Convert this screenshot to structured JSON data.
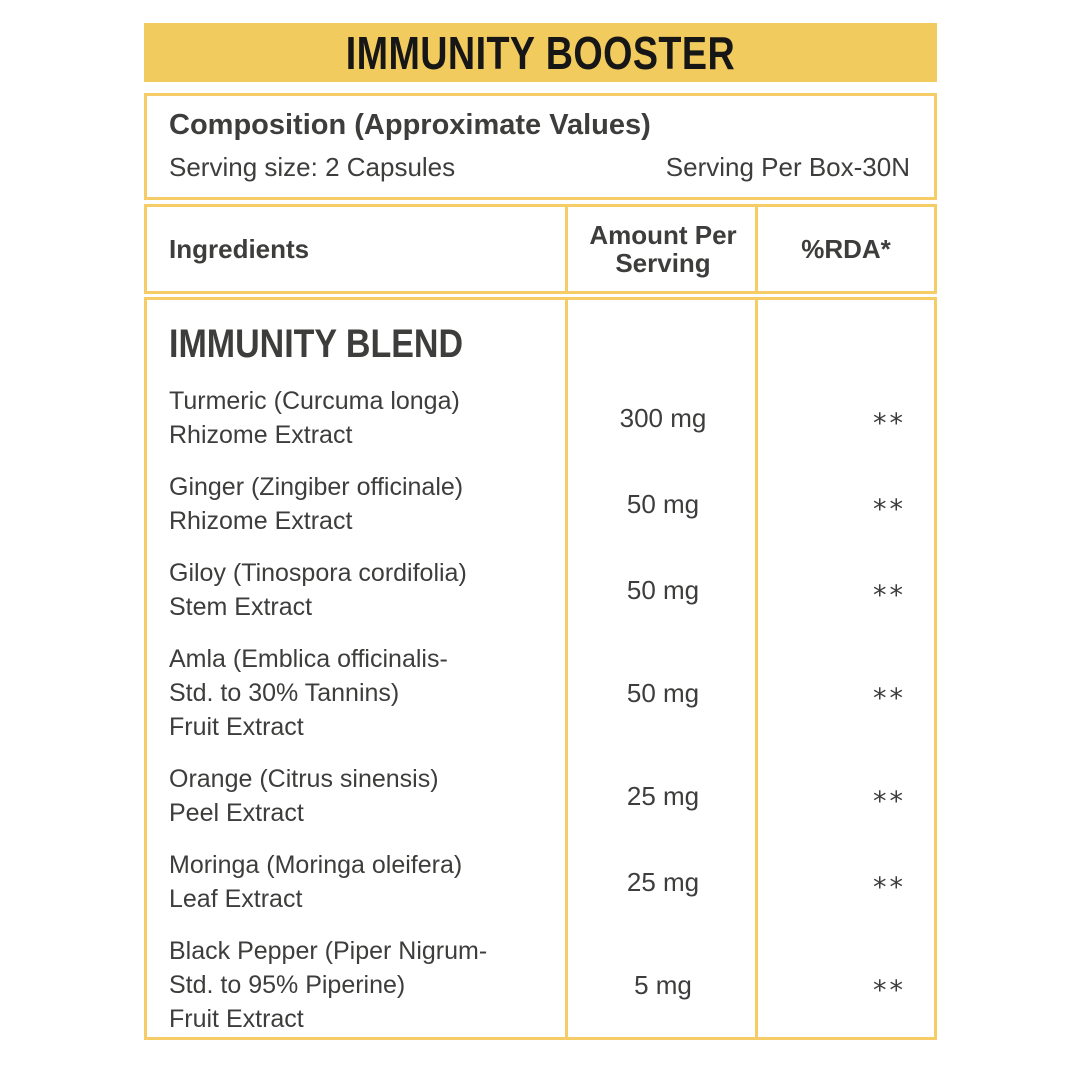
{
  "theme": {
    "page_bg": "#FFFFFF",
    "banner_bg": "#F2CB5F",
    "border_color": "#F5CC66",
    "text_dark": "#3D3D3C",
    "title_color": "#161616"
  },
  "banner": {
    "title": "IMMUNITY BOOSTER"
  },
  "composition": {
    "title": "Composition (Approximate Values)",
    "serving_size": "Serving size: 2 Capsules",
    "serving_per_box": "Serving Per Box-30N"
  },
  "table": {
    "headers": {
      "ingredients": "Ingredients",
      "amount": "Amount Per\nServing",
      "rda": "%RDA*"
    },
    "section_title": "IMMUNITY BLEND",
    "rows": [
      {
        "name": "Turmeric (Curcuma longa)\nRhizome Extract",
        "amount": "300 mg",
        "rda": "**"
      },
      {
        "name": "Ginger (Zingiber officinale)\nRhizome Extract",
        "amount": "50 mg",
        "rda": "**"
      },
      {
        "name": "Giloy (Tinospora cordifolia)\nStem Extract",
        "amount": "50 mg",
        "rda": "**"
      },
      {
        "name": "Amla (Emblica officinalis-\nStd. to 30% Tannins)\nFruit Extract",
        "amount": "50 mg",
        "rda": "**"
      },
      {
        "name": "Orange (Citrus sinensis)\nPeel Extract",
        "amount": "25 mg",
        "rda": "**"
      },
      {
        "name": "Moringa (Moringa oleifera)\nLeaf Extract",
        "amount": "25 mg",
        "rda": "**"
      },
      {
        "name": "Black Pepper (Piper Nigrum-\nStd. to 95% Piperine)\nFruit Extract",
        "amount": "5 mg",
        "rda": "**"
      }
    ]
  }
}
